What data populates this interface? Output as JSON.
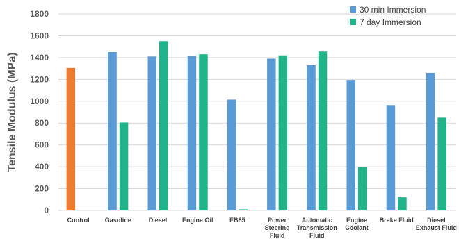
{
  "chart_data": {
    "type": "bar",
    "ylabel": "Tensile Modulus (MPa)",
    "ylim": [
      0,
      1800
    ],
    "yticks": [
      0,
      200,
      400,
      600,
      800,
      1000,
      1200,
      1400,
      1600,
      1800
    ],
    "grid": true,
    "legend": "top-right",
    "categories": [
      [
        "Control"
      ],
      [
        "Gasoline"
      ],
      [
        "Diesel"
      ],
      [
        "Engine Oil"
      ],
      [
        "EB85"
      ],
      [
        "Power",
        "Steering",
        "Fluid"
      ],
      [
        "Automatic",
        "Transmission",
        "Fluid"
      ],
      [
        "Engine",
        "Coolant"
      ],
      [
        "Brake Fluid"
      ],
      [
        "Diesel",
        "Exhaust Fluid"
      ]
    ],
    "control": {
      "value": 1305,
      "color": "#ED7D31"
    },
    "series": [
      {
        "name": "30 min Immersion",
        "color": "#5B9BD5",
        "values": [
          null,
          1450,
          1410,
          1415,
          1015,
          1390,
          1330,
          1195,
          965,
          1260
        ]
      },
      {
        "name": "7 day Immersion",
        "color": "#21B38A",
        "values": [
          null,
          805,
          1550,
          1430,
          10,
          1420,
          1455,
          400,
          120,
          850
        ]
      }
    ]
  }
}
